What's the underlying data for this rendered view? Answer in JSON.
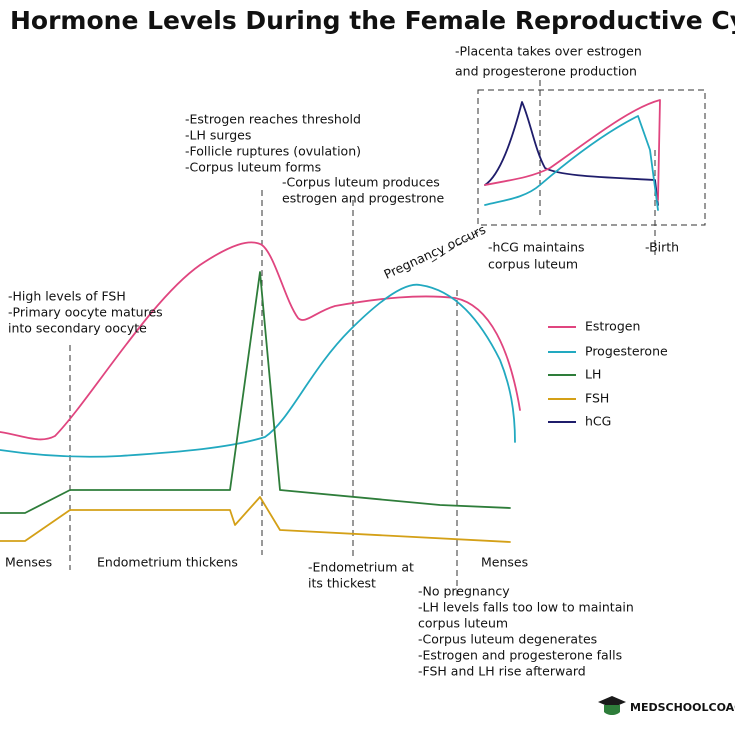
{
  "title": "Hormone Levels During the Female Reproductive Cycle",
  "legend": [
    {
      "name": "Estrogen",
      "color": "#e0457f"
    },
    {
      "name": "Progesterone",
      "color": "#22a9c0"
    },
    {
      "name": "LH",
      "color": "#2e7d3a"
    },
    {
      "name": "FSH",
      "color": "#d4a017"
    },
    {
      "name": "hCG",
      "color": "#1f1d6b"
    }
  ],
  "annotations": {
    "placenta": [
      "-Placenta takes over estrogen",
      "and progesterone production"
    ],
    "ovulation": [
      "-Estrogen reaches threshold",
      "-LH surges",
      "-Follicle ruptures (ovulation)",
      "-Corpus luteum forms"
    ],
    "corpus_luteum": [
      "-Corpus luteum produces",
      "estrogen and progestrone"
    ],
    "pregnancy": [
      "Pregnancy occurs"
    ],
    "hcg": [
      "-hCG maintains",
      "corpus luteum"
    ],
    "birth": [
      "-Birth"
    ],
    "fsh": [
      "-High levels  of FSH",
      "-Primary oocyte matures",
      "into secondary oocyte"
    ],
    "thickest": [
      "-Endometrium at",
      "its thickest"
    ],
    "no_pregnancy": [
      "-No pregnancy",
      "-LH levels falls too low to maintain",
      "corpus luteum",
      "-Corpus luteum degenerates",
      "-Estrogen and progesterone falls",
      "-FSH and LH rise afterward"
    ]
  },
  "phases": [
    "Menses",
    "Endometrium thickens",
    "Menses"
  ],
  "brand": "MEDSCHOOLCOACH"
}
